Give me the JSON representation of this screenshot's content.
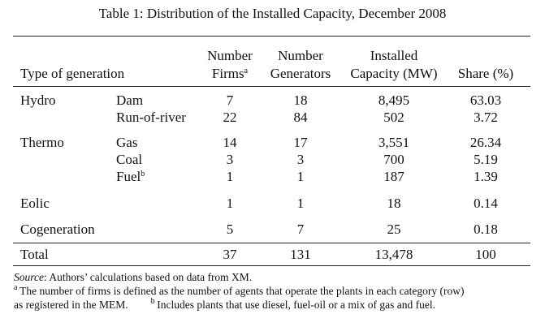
{
  "caption": "Table 1: Distribution of the Installed Capacity, December 2008",
  "headers": {
    "type_of_generation": "Type of generation",
    "firms_l1": "Number",
    "firms_l2": "Firms",
    "firms_sup": "a",
    "gen_l1": "Number",
    "gen_l2": "Generators",
    "cap_l1": "Installed",
    "cap_l2": "Capacity (MW)",
    "share": "Share (%)"
  },
  "rows": [
    {
      "group": "Hydro",
      "sub": "Dam",
      "sub_sup": "",
      "firms": "7",
      "generators": "18",
      "capacity": "8,495",
      "share": "63.03"
    },
    {
      "group": "",
      "sub": "Run-of-river",
      "sub_sup": "",
      "firms": "22",
      "generators": "84",
      "capacity": "502",
      "share": "3.72"
    },
    {
      "group": "Thermo",
      "sub": "Gas",
      "sub_sup": "",
      "firms": "14",
      "generators": "17",
      "capacity": "3,551",
      "share": "26.34"
    },
    {
      "group": "",
      "sub": "Coal",
      "sub_sup": "",
      "firms": "3",
      "generators": "3",
      "capacity": "700",
      "share": "5.19"
    },
    {
      "group": "",
      "sub": "Fuel",
      "sub_sup": "b",
      "firms": "1",
      "generators": "1",
      "capacity": "187",
      "share": "1.39"
    },
    {
      "group": "Eolic",
      "sub": "",
      "sub_sup": "",
      "firms": "1",
      "generators": "1",
      "capacity": "18",
      "share": "0.14"
    },
    {
      "group": "Cogeneration",
      "sub": "",
      "sub_sup": "",
      "firms": "5",
      "generators": "7",
      "capacity": "25",
      "share": "0.18"
    }
  ],
  "total": {
    "label": "Total",
    "firms": "37",
    "generators": "131",
    "capacity": "13,478",
    "share": "100"
  },
  "notes": {
    "source_label": "Source",
    "source_text": ": Authors’ calculations based on data from XM.",
    "a_mark": "a",
    "a_text": "The number of firms is defined as the number of agents that operate the plants in each category (row)",
    "a_text2": "as registered in the MEM.",
    "b_mark": "b",
    "b_text": "Includes plants that use diesel, fuel-oil or a mix of gas and fuel."
  }
}
